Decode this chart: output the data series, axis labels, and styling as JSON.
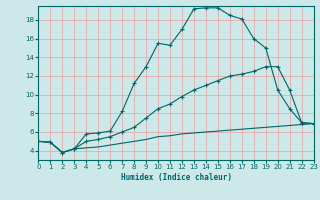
{
  "xlabel": "Humidex (Indice chaleur)",
  "bg_color": "#cce8e8",
  "grid_color": "#e8a0a0",
  "line_color": "#006666",
  "x_min": 0,
  "x_max": 23,
  "y_min": 3,
  "y_max": 19.5,
  "yticks": [
    4,
    6,
    8,
    10,
    12,
    14,
    16,
    18
  ],
  "xticks": [
    0,
    1,
    2,
    3,
    4,
    5,
    6,
    7,
    8,
    9,
    10,
    11,
    12,
    13,
    14,
    15,
    16,
    17,
    18,
    19,
    20,
    21,
    22,
    23
  ],
  "line1_x": [
    0,
    1,
    2,
    3,
    4,
    5,
    6,
    7,
    8,
    9,
    10,
    11,
    12,
    13,
    14,
    15,
    16,
    17,
    18,
    19,
    20,
    21,
    22,
    23
  ],
  "line1_y": [
    5.0,
    4.9,
    3.8,
    4.2,
    5.8,
    5.9,
    6.1,
    8.2,
    11.2,
    13.0,
    15.5,
    15.3,
    17.0,
    19.2,
    19.3,
    19.3,
    18.5,
    18.1,
    16.0,
    15.0,
    10.5,
    8.5,
    7.0,
    6.9
  ],
  "line2_x": [
    0,
    1,
    2,
    3,
    4,
    5,
    6,
    7,
    8,
    9,
    10,
    11,
    12,
    13,
    14,
    15,
    16,
    17,
    18,
    19,
    20,
    21,
    22,
    23
  ],
  "line2_y": [
    5.0,
    4.9,
    3.8,
    4.2,
    5.0,
    5.2,
    5.5,
    6.0,
    6.5,
    7.5,
    8.5,
    9.0,
    9.8,
    10.5,
    11.0,
    11.5,
    12.0,
    12.2,
    12.5,
    13.0,
    13.0,
    10.5,
    7.0,
    6.9
  ],
  "line3_x": [
    0,
    1,
    2,
    3,
    4,
    5,
    6,
    7,
    8,
    9,
    10,
    11,
    12,
    13,
    14,
    15,
    16,
    17,
    18,
    19,
    20,
    21,
    22,
    23
  ],
  "line3_y": [
    5.0,
    4.9,
    3.8,
    4.2,
    4.3,
    4.4,
    4.6,
    4.8,
    5.0,
    5.2,
    5.5,
    5.6,
    5.8,
    5.9,
    6.0,
    6.1,
    6.2,
    6.3,
    6.4,
    6.5,
    6.6,
    6.7,
    6.8,
    6.9
  ]
}
